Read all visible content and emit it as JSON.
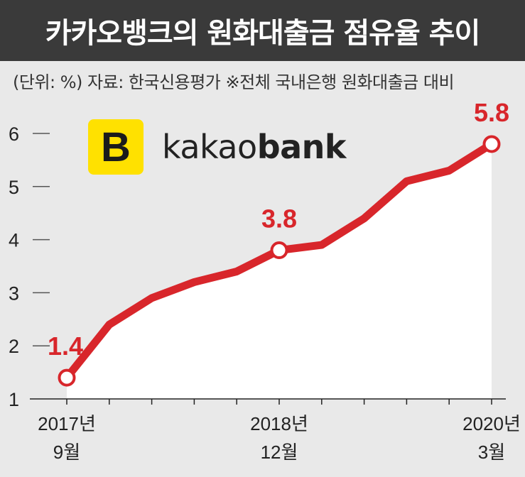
{
  "header": {
    "title": "카카오뱅크의 원화대출금 점유율 추이",
    "subtitle": "(단위: %) 자료: 한국신용평가 ※전체 국내은행 원화대출금 대비"
  },
  "logo": {
    "mark": "B",
    "word_light": "kakao",
    "word_bold": "bank",
    "colors": {
      "mark_bg": "#ffe100",
      "text": "#222222"
    }
  },
  "colors": {
    "line": "#d8262b",
    "area": "#ffffff",
    "bg": "#e9e9e9",
    "title_bg": "#3a3a3a"
  },
  "chart_data": {
    "type": "line",
    "title": "카카오뱅크의 원화대출금 점유율 추이",
    "ylim": [
      1,
      6
    ],
    "yticks": [
      1,
      2,
      3,
      4,
      5,
      6
    ],
    "series": [
      {
        "values": [
          1.4,
          2.4,
          2.9,
          3.2,
          3.4,
          3.8,
          3.9,
          4.4,
          5.1,
          5.3,
          5.8
        ]
      }
    ],
    "x_tick_labels": [
      {
        "index": 0,
        "line1": "2017년",
        "line2": "9월"
      },
      {
        "index": 5,
        "line1": "2018년",
        "line2": "12월"
      },
      {
        "index": 10,
        "line1": "2020년",
        "line2": "3월"
      }
    ],
    "highlights": [
      {
        "index": 0,
        "label": "1.4"
      },
      {
        "index": 5,
        "label": "3.8"
      },
      {
        "index": 10,
        "label": "5.8"
      }
    ],
    "area_fill": true,
    "grid": false
  }
}
